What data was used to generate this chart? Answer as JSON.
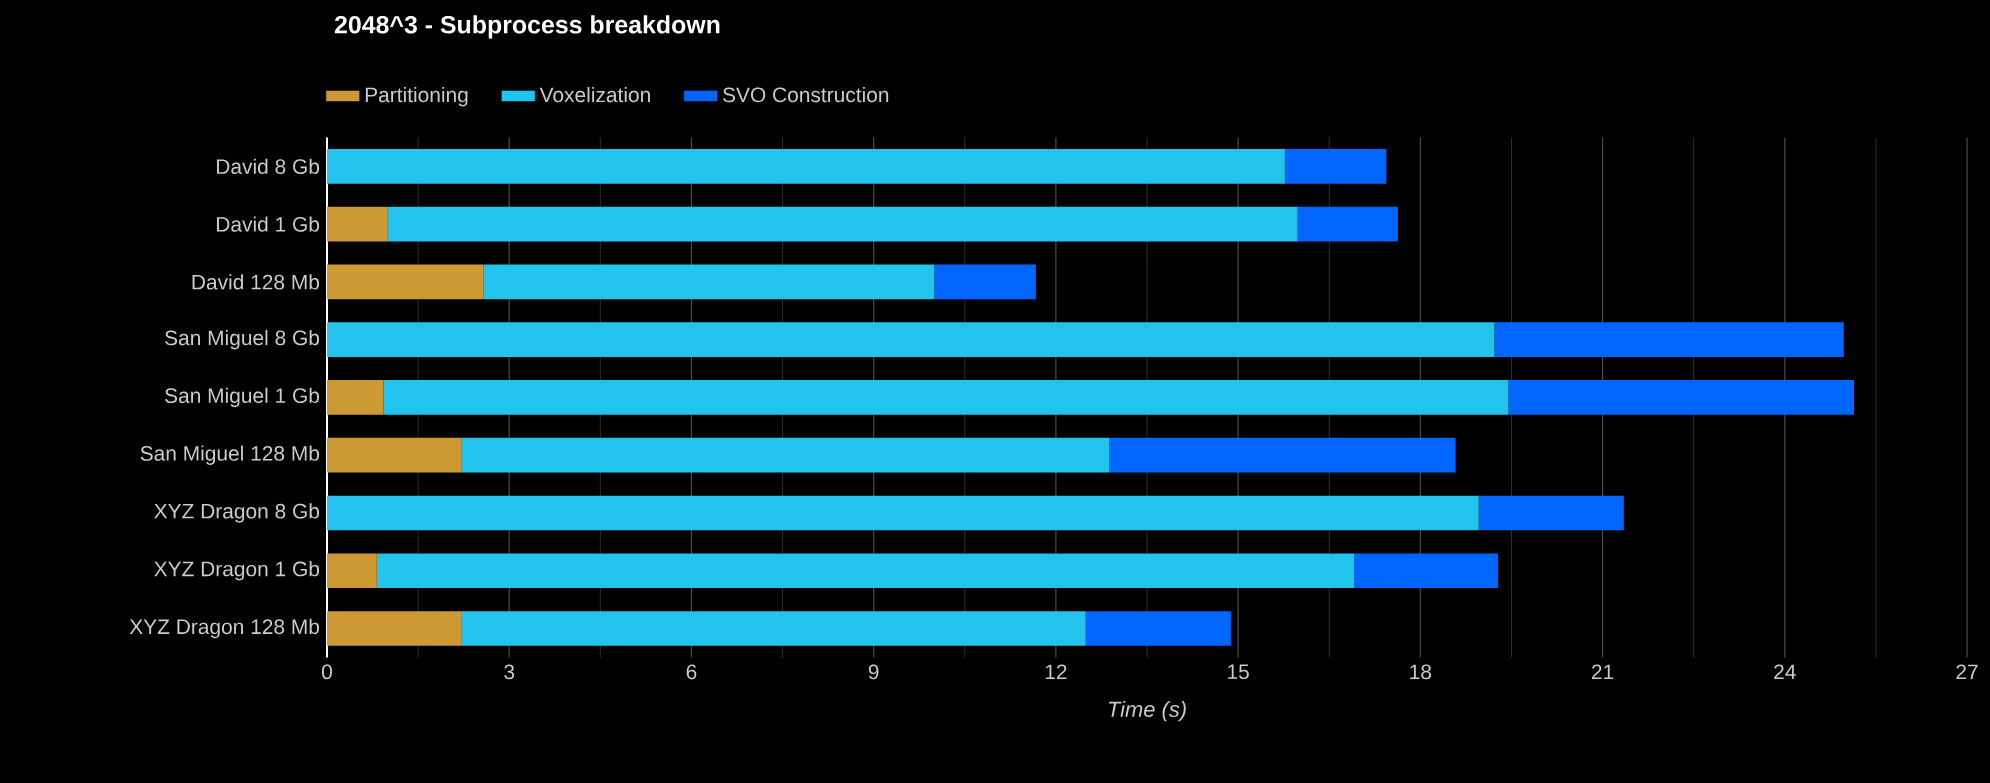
{
  "chart_data": {
    "type": "bar",
    "orientation": "horizontal",
    "stacked": true,
    "title": "2048^3 - Subprocess breakdown",
    "xlabel": "Time (s)",
    "categories": [
      "David 8 Gb",
      "David 1 Gb",
      "David 128 Mb",
      "San Miguel 8 Gb",
      "San Miguel 1 Gb",
      "San Miguel 128 Mb",
      "XYZ Dragon 8 Gb",
      "XYZ Dragon 1 Gb",
      "XYZ Dragon 128 Mb"
    ],
    "series": [
      {
        "name": "Partitioning",
        "color": "#cc9933",
        "values": [
          0,
          0.99,
          2.58,
          0,
          0.93,
          2.22,
          0,
          0.82,
          2.22
        ]
      },
      {
        "name": "Voxelization",
        "color": "#22c4ee",
        "values": [
          15.77,
          14.99,
          7.42,
          19.22,
          18.52,
          10.66,
          18.96,
          16.09,
          10.27
        ]
      },
      {
        "name": "SVO Construction",
        "color": "#0066ff",
        "values": [
          1.67,
          1.65,
          1.67,
          5.75,
          5.69,
          5.7,
          2.39,
          2.37,
          2.39
        ]
      }
    ],
    "xlim": [
      0,
      27
    ],
    "xticks": [
      0,
      3,
      6,
      9,
      12,
      15,
      18,
      21,
      24,
      27
    ],
    "grid": "x",
    "legend": "top left"
  }
}
